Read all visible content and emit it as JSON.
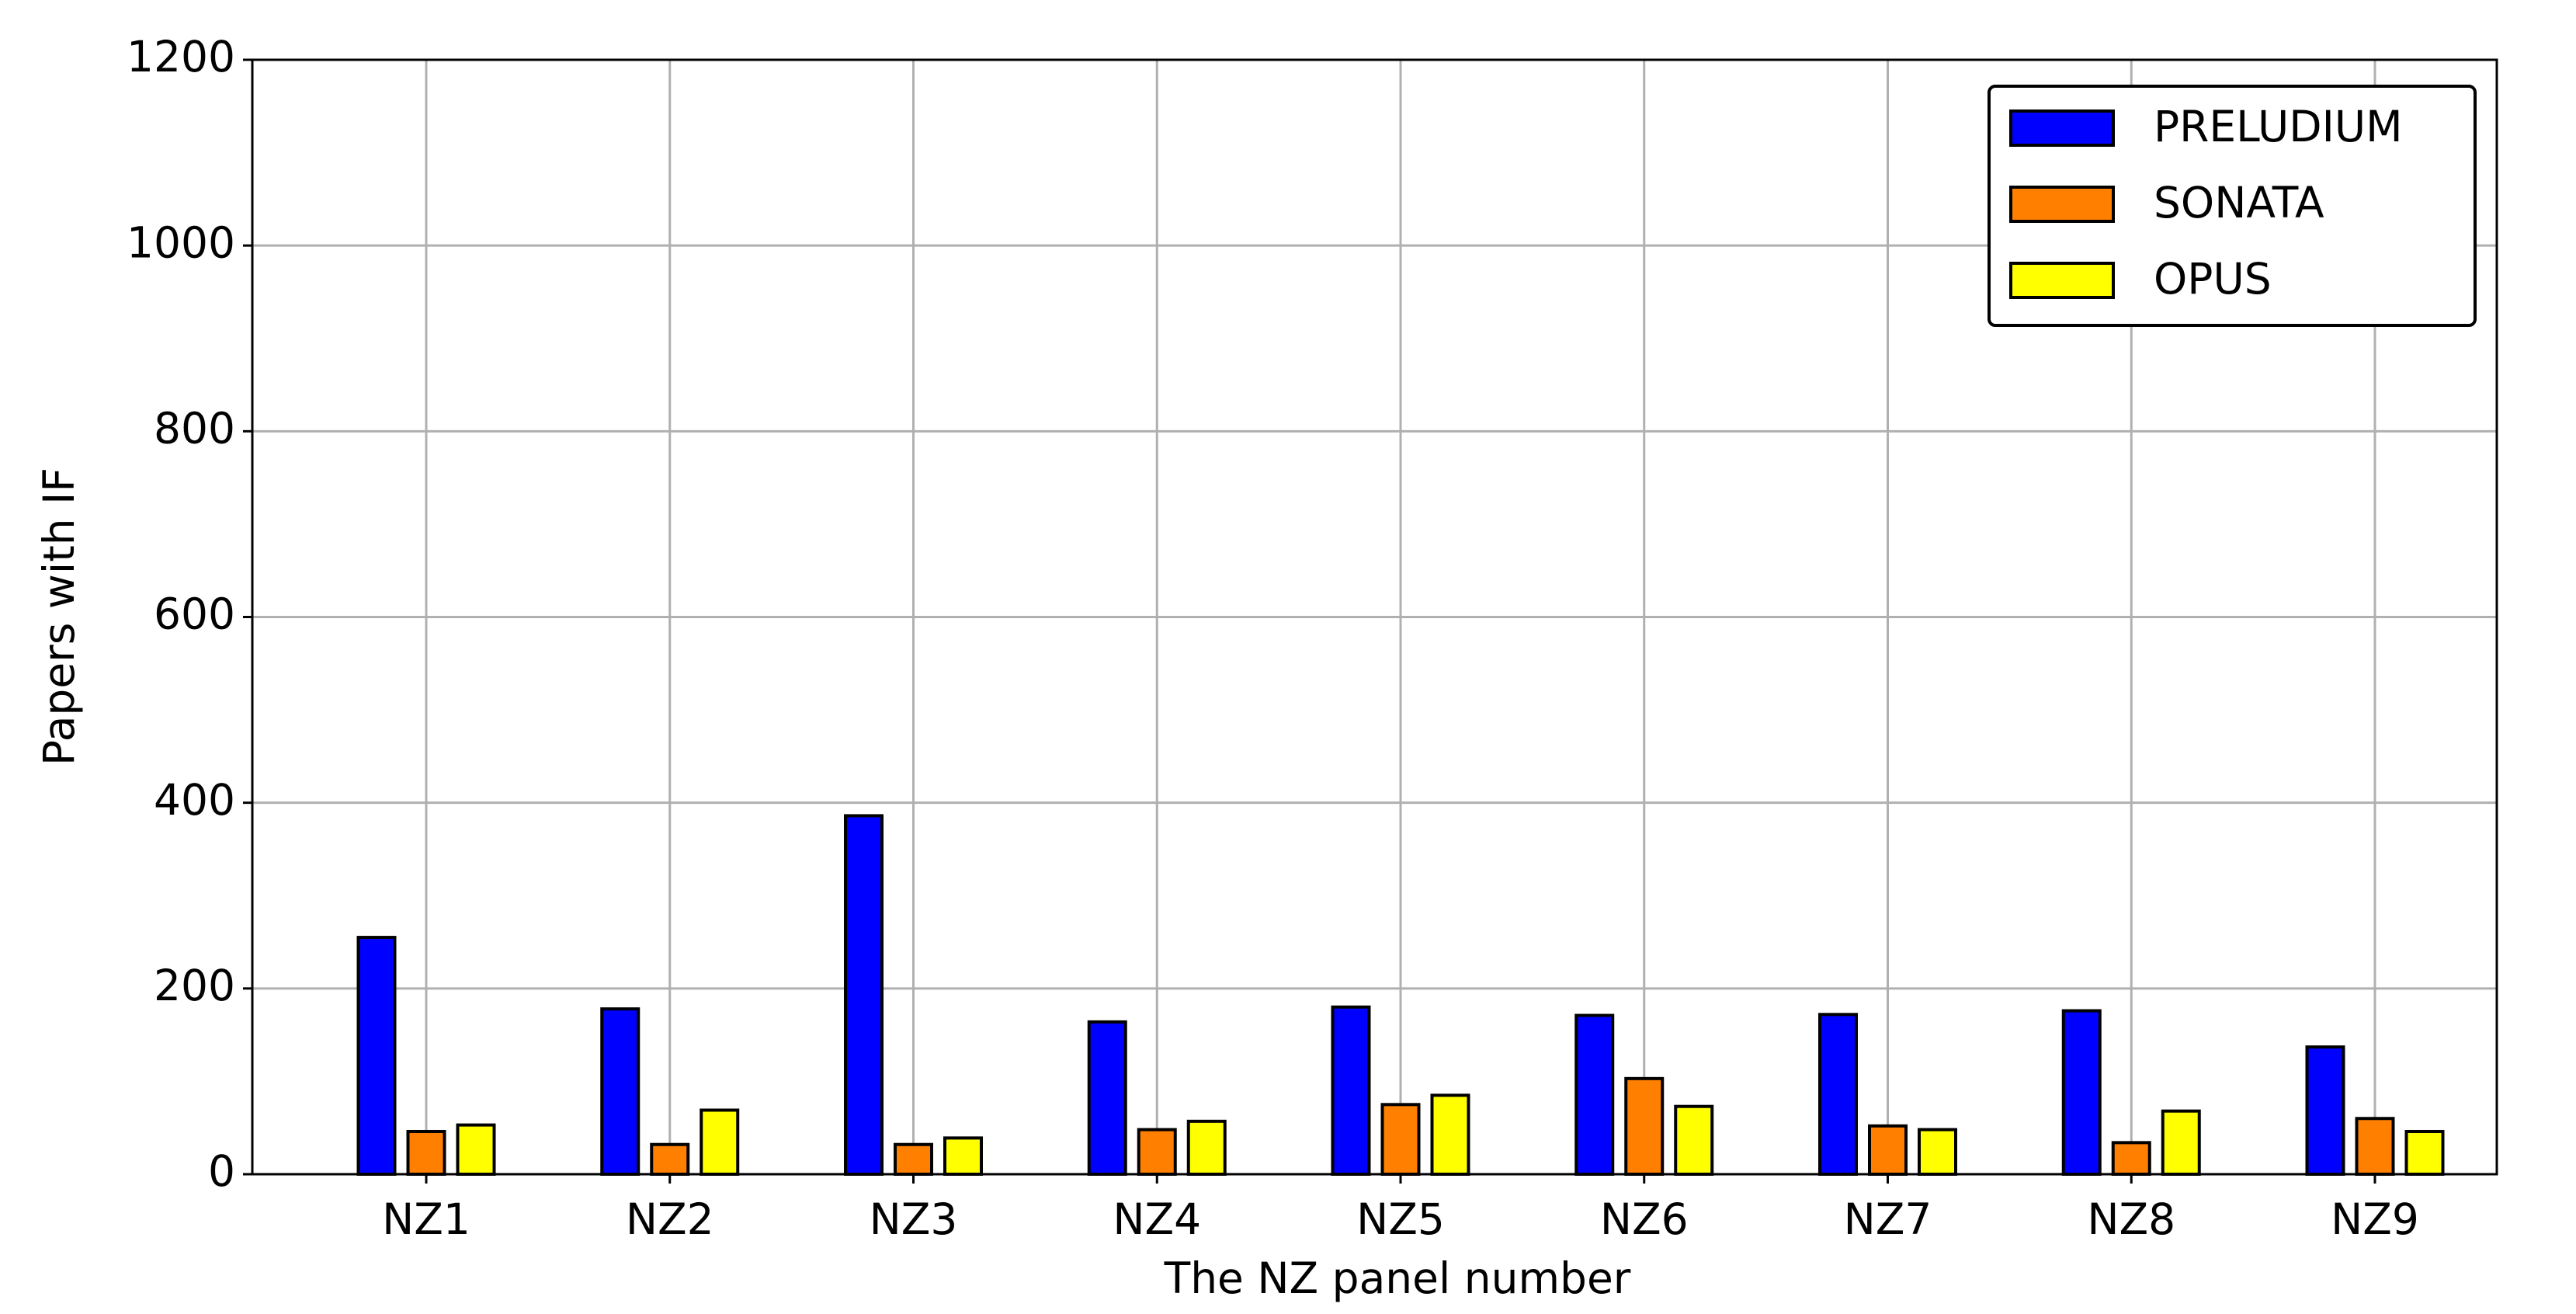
{
  "chart_data": {
    "type": "bar",
    "x_label": "The NZ panel number",
    "y_label": "Papers with IF",
    "categories": [
      "NZ1",
      "NZ2",
      "NZ3",
      "NZ4",
      "NZ5",
      "NZ6",
      "NZ7",
      "NZ8",
      "NZ9"
    ],
    "series": [
      {
        "name": "PRELUDIUM",
        "color": "#0000ff",
        "values": [
          255,
          178,
          386,
          164,
          180,
          171,
          172,
          176,
          137
        ]
      },
      {
        "name": "SONATA",
        "color": "#ff8000",
        "values": [
          46,
          32,
          32,
          48,
          75,
          103,
          52,
          34,
          60
        ]
      },
      {
        "name": "OPUS",
        "color": "#ffff00",
        "values": [
          53,
          69,
          39,
          57,
          85,
          73,
          48,
          68,
          46
        ]
      }
    ],
    "ylim": [
      0,
      1200
    ],
    "yticks": [
      0,
      200,
      400,
      600,
      800,
      1000,
      1200
    ],
    "grid": true,
    "legend": "upper right",
    "edge_color": "#000000"
  }
}
